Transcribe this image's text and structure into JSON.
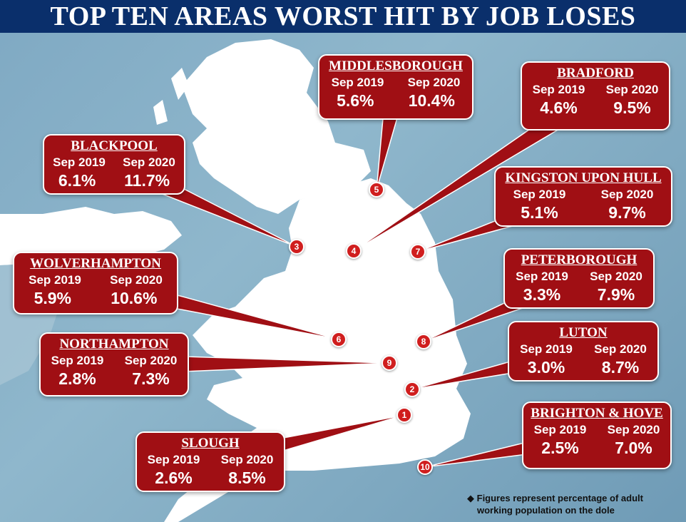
{
  "title": "TOP TEN AREAS WORST HIT BY JOB LOSES",
  "footnote_line1": "Figures represent percentage of adult",
  "footnote_line2": "working population on the dole",
  "colors": {
    "box": "#a00f14",
    "title_bg": "#0a2f6b",
    "sea": "#7fa9c3",
    "land": "#ffffff"
  },
  "year_labels": {
    "a": "Sep 2019",
    "b": "Sep 2020"
  },
  "areas": [
    {
      "rank": "1",
      "name": "SLOUGH",
      "sep2019": "2.6%",
      "sep2020": "8.5%"
    },
    {
      "rank": "2",
      "name": "LUTON",
      "sep2019": "3.0%",
      "sep2020": "8.7%"
    },
    {
      "rank": "3",
      "name": "BLACKPOOL",
      "sep2019": "6.1%",
      "sep2020": "11.7%"
    },
    {
      "rank": "4",
      "name": "BRADFORD",
      "sep2019": "4.6%",
      "sep2020": "9.5%"
    },
    {
      "rank": "5",
      "name": "MIDDLESBOROUGH",
      "sep2019": "5.6%",
      "sep2020": "10.4%"
    },
    {
      "rank": "6",
      "name": "WOLVERHAMPTON",
      "sep2019": "5.9%",
      "sep2020": "10.6%"
    },
    {
      "rank": "7",
      "name": "KINGSTON UPON HULL",
      "sep2019": "5.1%",
      "sep2020": "9.7%"
    },
    {
      "rank": "8",
      "name": "PETERBOROUGH",
      "sep2019": "3.3%",
      "sep2020": "7.9%"
    },
    {
      "rank": "9",
      "name": "NORTHAMPTON",
      "sep2019": "2.8%",
      "sep2020": "7.3%"
    },
    {
      "rank": "10",
      "name": "BRIGHTON & HOVE",
      "sep2019": "2.5%",
      "sep2020": "7.0%"
    }
  ]
}
